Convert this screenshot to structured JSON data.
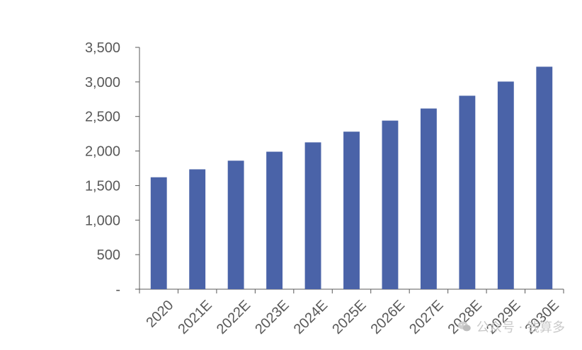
{
  "chart_data": {
    "type": "bar",
    "title": "",
    "xlabel": "",
    "ylabel": "",
    "categories": [
      "2020",
      "2021E",
      "2022E",
      "2023E",
      "2024E",
      "2025E",
      "2026E",
      "2027E",
      "2028E",
      "2029E",
      "2030E"
    ],
    "values": [
      1620,
      1735,
      1860,
      1990,
      2125,
      2280,
      2440,
      2615,
      2800,
      3005,
      3220
    ],
    "ylim": [
      0,
      3500
    ],
    "yticks": [
      0,
      500,
      1000,
      1500,
      2000,
      2500,
      3000,
      3500
    ],
    "ytick_labels": [
      "-",
      "500",
      "1,000",
      "1,500",
      "2,000",
      "2,500",
      "3,000",
      "3,500"
    ],
    "grid": false,
    "legend": "none",
    "bar_color": "#4a63a8",
    "axis_color": "#595959"
  },
  "watermark": {
    "icon": "wechat-icon",
    "text": "公众号 · 钱算多"
  }
}
